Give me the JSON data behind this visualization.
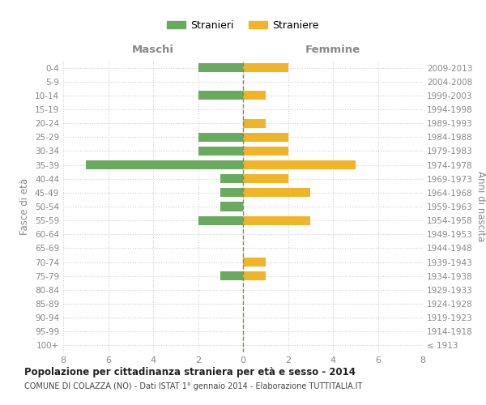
{
  "age_groups": [
    "100+",
    "95-99",
    "90-94",
    "85-89",
    "80-84",
    "75-79",
    "70-74",
    "65-69",
    "60-64",
    "55-59",
    "50-54",
    "45-49",
    "40-44",
    "35-39",
    "30-34",
    "25-29",
    "20-24",
    "15-19",
    "10-14",
    "5-9",
    "0-4"
  ],
  "birth_years": [
    "≤ 1913",
    "1914-1918",
    "1919-1923",
    "1924-1928",
    "1929-1933",
    "1934-1938",
    "1939-1943",
    "1944-1948",
    "1949-1953",
    "1954-1958",
    "1959-1963",
    "1964-1968",
    "1969-1973",
    "1974-1978",
    "1979-1983",
    "1984-1988",
    "1989-1993",
    "1994-1998",
    "1999-2003",
    "2004-2008",
    "2009-2013"
  ],
  "males": [
    0,
    0,
    0,
    0,
    0,
    1,
    0,
    0,
    0,
    2,
    1,
    1,
    1,
    7,
    2,
    2,
    0,
    0,
    2,
    0,
    2
  ],
  "females": [
    0,
    0,
    0,
    0,
    0,
    1,
    1,
    0,
    0,
    3,
    0,
    3,
    2,
    5,
    2,
    2,
    1,
    0,
    1,
    0,
    2
  ],
  "color_male": "#6aaa5e",
  "color_female": "#f0b429",
  "title_main": "Popolazione per cittadinanza straniera per età e sesso - 2014",
  "title_sub": "COMUNE DI COLAZZA (NO) - Dati ISTAT 1° gennaio 2014 - Elaborazione TUTTITALIA.IT",
  "label_maschi": "Maschi",
  "label_femmine": "Femmine",
  "ylabel_left": "Fasce di età",
  "ylabel_right": "Anni di nascita",
  "legend_male": "Stranieri",
  "legend_female": "Straniere",
  "xlim": 8,
  "background_color": "#ffffff",
  "grid_color": "#d0d0d0",
  "tick_color": "#888888",
  "centerline_color": "#888866"
}
